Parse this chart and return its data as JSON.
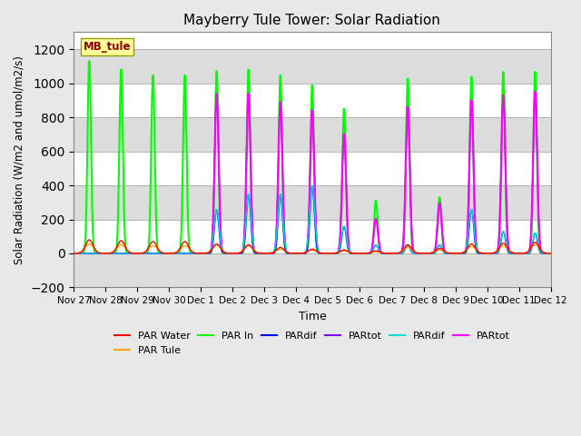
{
  "title": "Mayberry Tule Tower: Solar Radiation",
  "xlabel": "Time",
  "ylabel": "Solar Radiation (W/m2 and umol/m2/s)",
  "ylim": [
    -200,
    1300
  ],
  "yticks": [
    -200,
    0,
    200,
    400,
    600,
    800,
    1000,
    1200
  ],
  "n_days": 15,
  "xtick_labels": [
    "Nov 27",
    "Nov 28",
    "Nov 29",
    "Nov 30",
    "Dec 1",
    "Dec 2",
    "Dec 3",
    "Dec 4",
    "Dec 5",
    "Dec 6",
    "Dec 7",
    "Dec 8",
    "Dec 9",
    "Dec 10",
    "Dec 11",
    "Dec 12"
  ],
  "station_label": "MB_tule",
  "station_label_color": "#8B0000",
  "station_box_color": "#FFFF99",
  "background_color": "#E8E8E8",
  "plot_bg_color": "#FFFFFF",
  "band_color": "#DCDCDC",
  "band_ranges": [
    [
      -200,
      0
    ],
    [
      200,
      400
    ],
    [
      600,
      800
    ],
    [
      1000,
      1200
    ]
  ],
  "series": [
    {
      "name": "PAR Water",
      "color": "#FF0000",
      "lw": 1.0
    },
    {
      "name": "PAR Tule",
      "color": "#FFA500",
      "lw": 1.0
    },
    {
      "name": "PAR In",
      "color": "#00FF00",
      "lw": 1.5
    },
    {
      "name": "PARdif",
      "color": "#0000FF",
      "lw": 1.0
    },
    {
      "name": "PARtot",
      "color": "#8800FF",
      "lw": 1.0
    },
    {
      "name": "PARdif",
      "color": "#00DDDD",
      "lw": 1.0
    },
    {
      "name": "PARtot",
      "color": "#FF00FF",
      "lw": 1.5
    }
  ],
  "peaks": [
    {
      "peak_green": 1150,
      "peak_mag": 0,
      "peak_cyan": 0,
      "peak_blue": 0,
      "peak_purple": 0,
      "peak_water": 80,
      "peak_tule": 55
    },
    {
      "peak_green": 1100,
      "peak_mag": 0,
      "peak_cyan": 0,
      "peak_blue": 0,
      "peak_purple": 0,
      "peak_water": 75,
      "peak_tule": 50
    },
    {
      "peak_green": 1065,
      "peak_mag": 0,
      "peak_cyan": 0,
      "peak_blue": 0,
      "peak_purple": 0,
      "peak_water": 70,
      "peak_tule": 45
    },
    {
      "peak_green": 1065,
      "peak_mag": 0,
      "peak_cyan": 0,
      "peak_blue": 0,
      "peak_purple": 0,
      "peak_water": 70,
      "peak_tule": 45
    },
    {
      "peak_green": 1090,
      "peak_mag": 950,
      "peak_cyan": 260,
      "peak_blue": 260,
      "peak_purple": 950,
      "peak_water": 55,
      "peak_tule": 50
    },
    {
      "peak_green": 1100,
      "peak_mag": 950,
      "peak_cyan": 350,
      "peak_blue": 350,
      "peak_purple": 950,
      "peak_water": 50,
      "peak_tule": 45
    },
    {
      "peak_green": 1065,
      "peak_mag": 900,
      "peak_cyan": 350,
      "peak_blue": 350,
      "peak_purple": 900,
      "peak_water": 35,
      "peak_tule": 25
    },
    {
      "peak_green": 1005,
      "peak_mag": 850,
      "peak_cyan": 400,
      "peak_blue": 400,
      "peak_purple": 850,
      "peak_water": 25,
      "peak_tule": 20
    },
    {
      "peak_green": 865,
      "peak_mag": 710,
      "peak_cyan": 160,
      "peak_blue": 160,
      "peak_purple": 710,
      "peak_water": 20,
      "peak_tule": 15
    },
    {
      "peak_green": 315,
      "peak_mag": 205,
      "peak_cyan": 50,
      "peak_blue": 50,
      "peak_purple": 205,
      "peak_water": 15,
      "peak_tule": 10
    },
    {
      "peak_green": 1045,
      "peak_mag": 870,
      "peak_cyan": 50,
      "peak_blue": 50,
      "peak_purple": 870,
      "peak_water": 50,
      "peak_tule": 35
    },
    {
      "peak_green": 335,
      "peak_mag": 300,
      "peak_cyan": 50,
      "peak_blue": 50,
      "peak_purple": 300,
      "peak_water": 30,
      "peak_tule": 20
    },
    {
      "peak_green": 1055,
      "peak_mag": 910,
      "peak_cyan": 260,
      "peak_blue": 260,
      "peak_purple": 910,
      "peak_water": 55,
      "peak_tule": 40
    },
    {
      "peak_green": 1085,
      "peak_mag": 940,
      "peak_cyan": 130,
      "peak_blue": 130,
      "peak_purple": 940,
      "peak_water": 60,
      "peak_tule": 45
    },
    {
      "peak_green": 1085,
      "peak_mag": 960,
      "peak_cyan": 120,
      "peak_blue": 120,
      "peak_purple": 960,
      "peak_water": 65,
      "peak_tule": 50
    }
  ]
}
